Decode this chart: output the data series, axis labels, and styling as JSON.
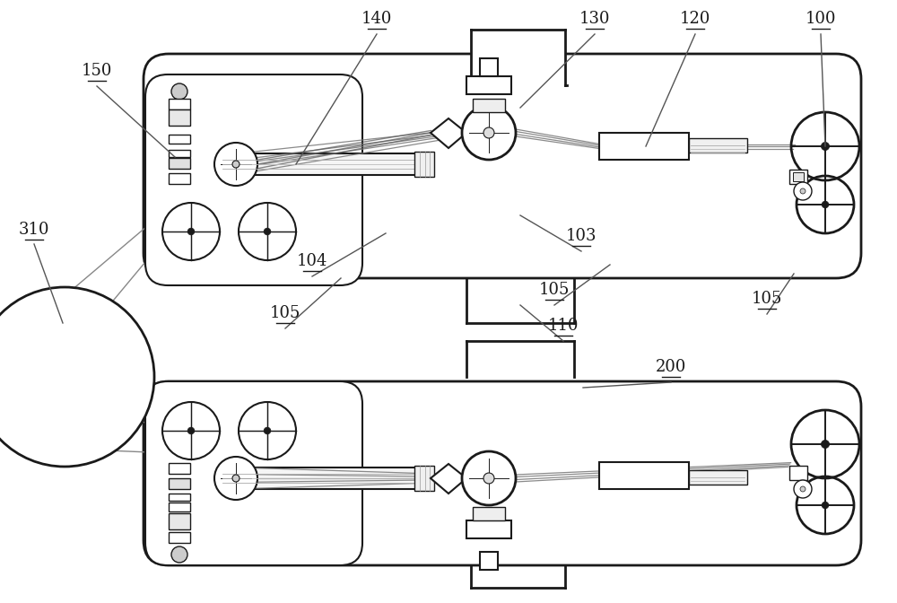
{
  "bg_color": "#ffffff",
  "line_color": "#1a1a1a",
  "figsize": [
    10.0,
    6.72
  ],
  "dpi": 100,
  "labels": [
    [
      "100",
      915,
      30
    ],
    [
      "120",
      775,
      30
    ],
    [
      "130",
      663,
      30
    ],
    [
      "140",
      420,
      30
    ],
    [
      "150",
      108,
      88
    ],
    [
      "310",
      38,
      265
    ],
    [
      "103",
      648,
      272
    ],
    [
      "104",
      348,
      300
    ],
    [
      "105",
      318,
      358
    ],
    [
      "105",
      618,
      332
    ],
    [
      "105",
      855,
      342
    ],
    [
      "110",
      628,
      372
    ],
    [
      "200",
      748,
      418
    ]
  ]
}
